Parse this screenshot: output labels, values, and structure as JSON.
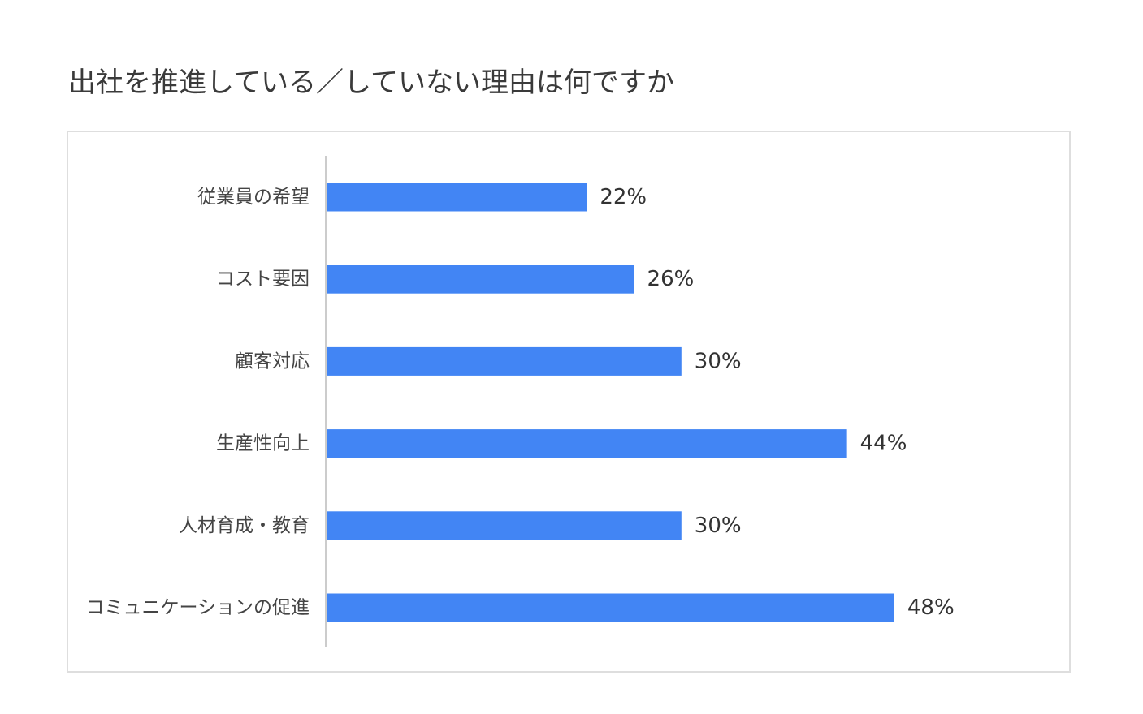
{
  "header": {
    "title": "出社を推進している／していない理由は何ですか"
  },
  "chart_data": {
    "type": "bar",
    "orientation": "horizontal",
    "categories": [
      "従業員の希望",
      "コスト要因",
      "顧客対応",
      "生産性向上",
      "人材育成・教育",
      "コミュニケーションの促進"
    ],
    "values": [
      22,
      26,
      30,
      44,
      30,
      48
    ],
    "value_labels": [
      "22%",
      "26%",
      "30%",
      "44%",
      "30%",
      "48%"
    ],
    "unit": "%",
    "xlim": [
      0,
      100
    ],
    "grid": false,
    "legend": "none",
    "bar_color": "#4285f4",
    "axis_color": "#cccccc"
  }
}
